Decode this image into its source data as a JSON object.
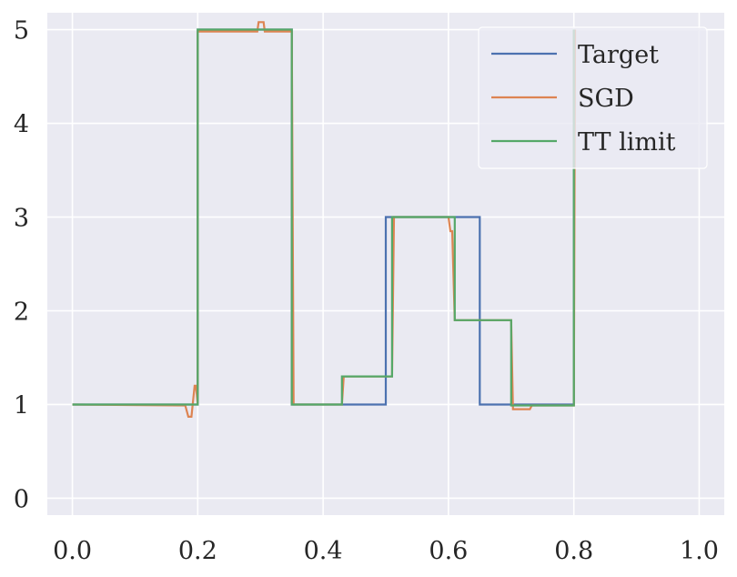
{
  "chart_data": {
    "type": "line",
    "title": "",
    "xlabel": "",
    "ylabel": "",
    "xlim": [
      -0.04,
      1.04
    ],
    "ylim": [
      -0.18,
      5.18
    ],
    "xticks": [
      0.0,
      0.2,
      0.4,
      0.6,
      0.8,
      1.0
    ],
    "xtick_labels": [
      "0.0",
      "0.2",
      "0.4",
      "0.6",
      "0.8",
      "1.0"
    ],
    "yticks": [
      0,
      1,
      2,
      3,
      4,
      5
    ],
    "ytick_labels": [
      "0",
      "1",
      "2",
      "3",
      "4",
      "5"
    ],
    "grid": true,
    "legend_position": "top-right",
    "series": [
      {
        "name": "Target",
        "color": "#4c72b0",
        "x": [
          0.0,
          0.2,
          0.2,
          0.35,
          0.35,
          0.5,
          0.5,
          0.65,
          0.65,
          0.8,
          0.8
        ],
        "y": [
          1,
          1,
          5,
          5,
          1,
          1,
          3,
          3,
          1,
          1,
          5
        ]
      },
      {
        "name": "SGD",
        "color": "#dd8452",
        "x": [
          0.0,
          0.18,
          0.185,
          0.19,
          0.195,
          0.197,
          0.2,
          0.2,
          0.295,
          0.297,
          0.305,
          0.307,
          0.35,
          0.353,
          0.43,
          0.433,
          0.51,
          0.513,
          0.6,
          0.603,
          0.606,
          0.61,
          0.7,
          0.703,
          0.73,
          0.733,
          0.8,
          0.802
        ],
        "y": [
          1,
          0.99,
          0.87,
          0.87,
          1.2,
          1.2,
          1.0,
          4.98,
          4.98,
          5.08,
          5.08,
          4.98,
          4.98,
          1.0,
          1.0,
          1.3,
          1.3,
          3.0,
          3.0,
          2.85,
          2.85,
          1.9,
          1.9,
          0.95,
          0.95,
          0.99,
          0.99,
          5.0
        ]
      },
      {
        "name": "TT limit",
        "color": "#55a868",
        "x": [
          0.0,
          0.2,
          0.2,
          0.35,
          0.35,
          0.43,
          0.43,
          0.51,
          0.51,
          0.61,
          0.61,
          0.7,
          0.7,
          0.8,
          0.8
        ],
        "y": [
          1,
          1,
          5,
          5,
          1,
          1,
          1.3,
          1.3,
          3.0,
          3.0,
          1.9,
          1.9,
          0.99,
          0.99,
          5.0
        ]
      }
    ]
  }
}
